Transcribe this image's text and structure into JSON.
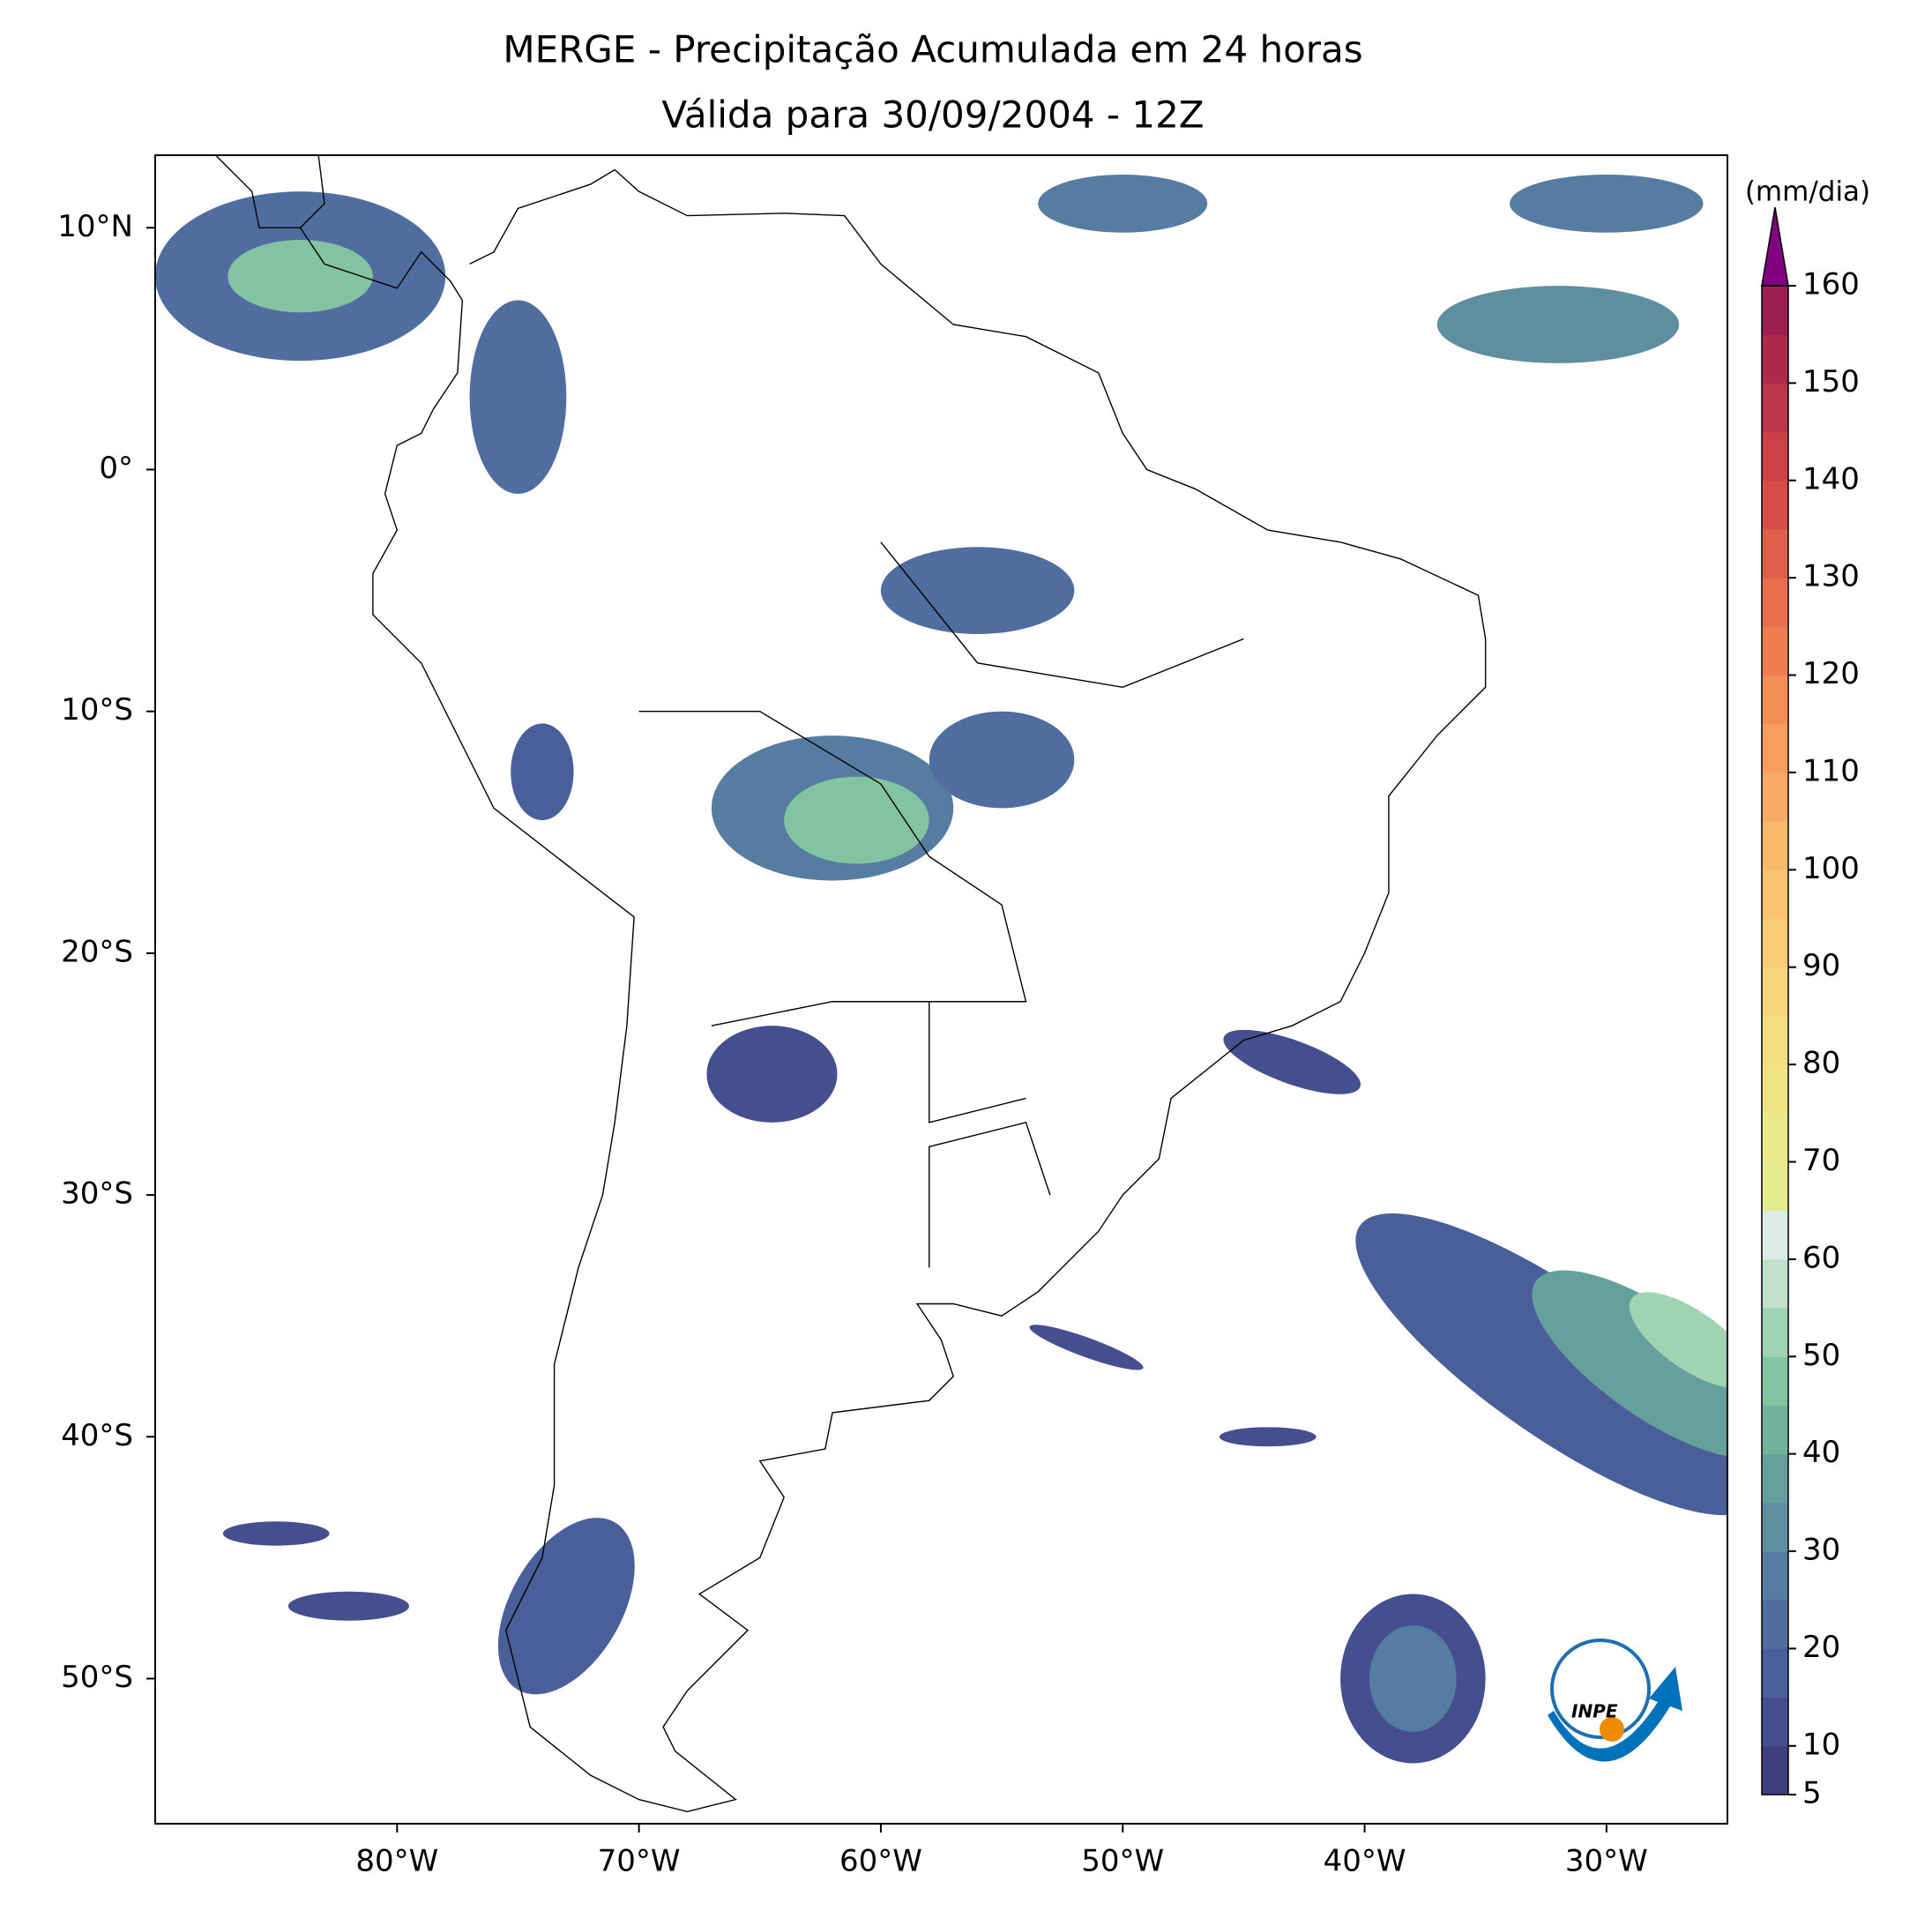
{
  "chart_data": {
    "type": "map",
    "title": "MERGE - Precipitação Acumulada em 24 horas",
    "subtitle": "Válida para 30/09/2004 - 12Z",
    "xlim": [
      -90,
      -25
    ],
    "ylim": [
      -56,
      13
    ],
    "xticks": [
      {
        "value": -80,
        "label": "80°W"
      },
      {
        "value": -70,
        "label": "70°W"
      },
      {
        "value": -60,
        "label": "60°W"
      },
      {
        "value": -50,
        "label": "50°W"
      },
      {
        "value": -40,
        "label": "40°W"
      },
      {
        "value": -30,
        "label": "30°W"
      }
    ],
    "yticks": [
      {
        "value": 10,
        "label": "10°N"
      },
      {
        "value": 0,
        "label": "0°"
      },
      {
        "value": -10,
        "label": "10°S"
      },
      {
        "value": -20,
        "label": "20°S"
      },
      {
        "value": -30,
        "label": "30°S"
      },
      {
        "value": -40,
        "label": "40°S"
      },
      {
        "value": -50,
        "label": "50°S"
      }
    ],
    "colorbar_label": "(mm/dia)",
    "colorbar_ticks": [
      5,
      10,
      20,
      30,
      40,
      50,
      60,
      70,
      80,
      90,
      100,
      110,
      120,
      130,
      140,
      150,
      160
    ],
    "levels": [
      5,
      10,
      15,
      20,
      25,
      30,
      35,
      40,
      45,
      50,
      55,
      60,
      65,
      70,
      75,
      80,
      85,
      90,
      95,
      100,
      105,
      110,
      115,
      120,
      125,
      130,
      135,
      140,
      145,
      150,
      155,
      160
    ],
    "colors": [
      "#3f3f80",
      "#454f8f",
      "#4a5e9a",
      "#4f6d9f",
      "#567ca1",
      "#5e8ea0",
      "#66a09d",
      "#72b29d",
      "#84c3a2",
      "#a0d2b4",
      "#c0e0cc",
      "#dcece6",
      "#e2ec8f",
      "#eae98a",
      "#efe386",
      "#f3dc81",
      "#f6d57c",
      "#f8cc77",
      "#f9c372",
      "#f9b86c",
      "#f8ab66",
      "#f69d5f",
      "#f38e58",
      "#ee7e52",
      "#e86e4d",
      "#df5e49",
      "#d44f47",
      "#c84247",
      "#ba3548",
      "#ab2a4b",
      "#9c1f4f"
    ],
    "extend_color": "#800080",
    "logo_text": "INPE"
  }
}
